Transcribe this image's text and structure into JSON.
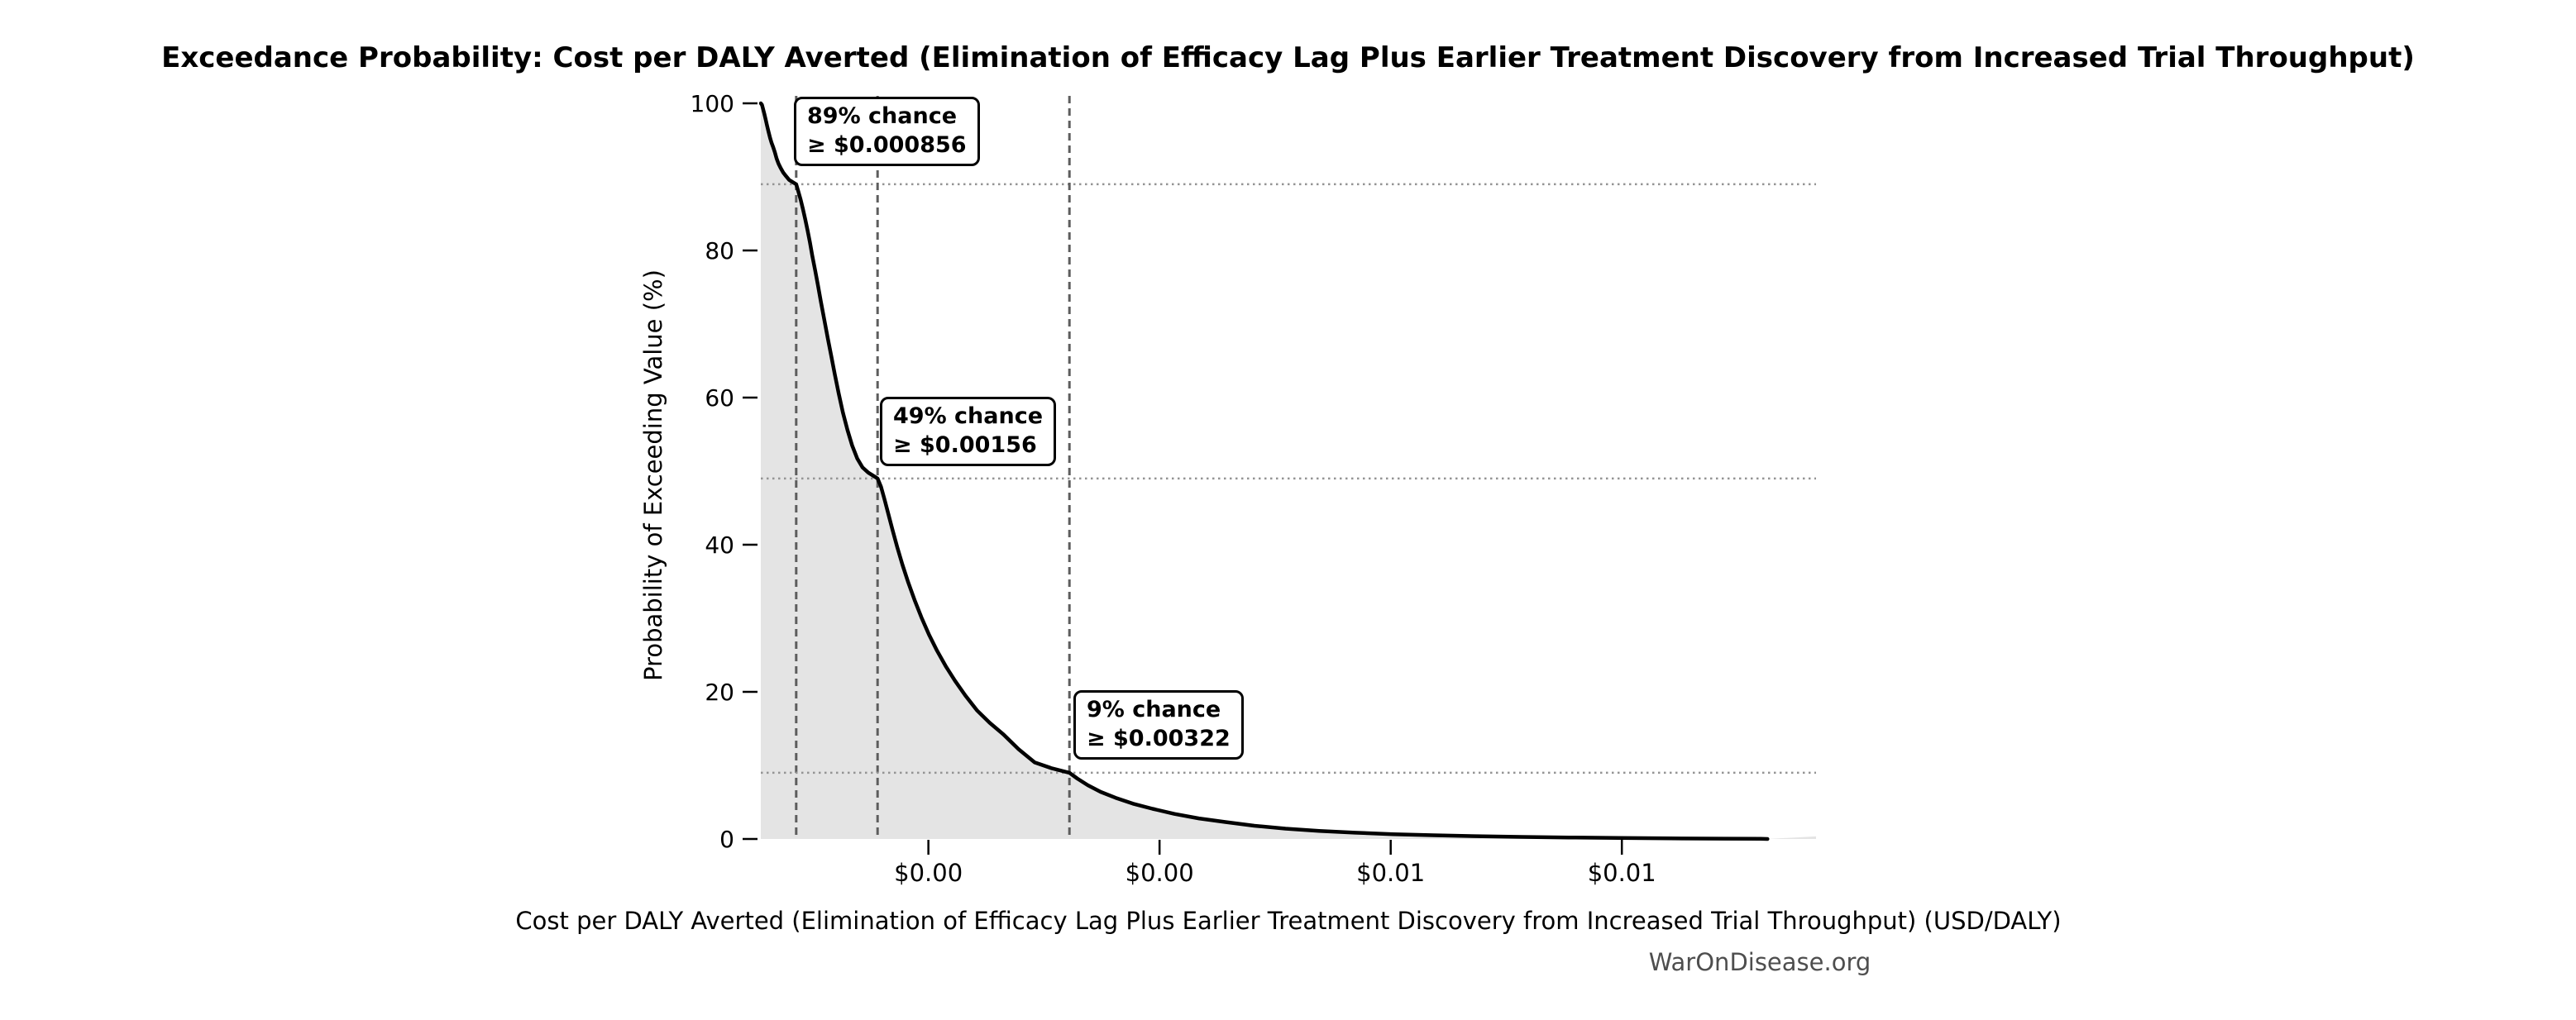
{
  "title": "Exceedance Probability: Cost per DALY Averted (Elimination of Efficacy Lag Plus Earlier Treatment Discovery from Increased Trial Throughput)",
  "watermark": "WarOnDisease.org",
  "chart_data": {
    "type": "area",
    "title": "Exceedance Probability: Cost per DALY Averted (Elimination of Efficacy Lag Plus Earlier Treatment Discovery from Increased Trial Throughput)",
    "xlabel": "Cost per DALY Averted (Elimination of Efficacy Lag Plus Earlier Treatment Discovery from Increased Trial Throughput) (USD/DALY)",
    "ylabel": "Probability of Exceeding Value (%)",
    "xlim": [
      0.00055,
      0.00968
    ],
    "ylim": [
      0,
      101
    ],
    "grid": "off",
    "legend": "none",
    "x_ticks": [
      {
        "value": 0.002,
        "label": "$0.00"
      },
      {
        "value": 0.004,
        "label": "$0.00"
      },
      {
        "value": 0.006,
        "label": "$0.01"
      },
      {
        "value": 0.008,
        "label": "$0.01"
      }
    ],
    "y_ticks": [
      {
        "value": 0,
        "label": "0"
      },
      {
        "value": 20,
        "label": "20"
      },
      {
        "value": 40,
        "label": "40"
      },
      {
        "value": 60,
        "label": "60"
      },
      {
        "value": 80,
        "label": "80"
      },
      {
        "value": 100,
        "label": "100"
      }
    ],
    "annotations": [
      {
        "line1": "89% chance",
        "line2": "≥ $0.000856",
        "value": 0.000856,
        "probability": 89
      },
      {
        "line1": "49% chance",
        "line2": "≥ $0.00156",
        "value": 0.00156,
        "probability": 49
      },
      {
        "line1": "9% chance",
        "line2": "≥ $0.00322",
        "value": 0.00322,
        "probability": 9
      }
    ],
    "colors": {
      "curve": "#000000",
      "fill": "#e4e4e4",
      "vline": "#5d5d5d",
      "hline": "#949494",
      "watermark": "#4e4e4e"
    },
    "series": [
      {
        "name": "exceedance-curve",
        "points": [
          [
            0.00055,
            100.0
          ],
          [
            0.00056,
            99.8
          ],
          [
            0.00057,
            99.2
          ],
          [
            0.00058,
            98.6
          ],
          [
            0.000592,
            97.8
          ],
          [
            0.000604,
            97.0
          ],
          [
            0.000617,
            96.1
          ],
          [
            0.00063,
            95.3
          ],
          [
            0.000644,
            94.6
          ],
          [
            0.000658,
            94.0
          ],
          [
            0.000672,
            93.3
          ],
          [
            0.000687,
            92.5
          ],
          [
            0.000703,
            91.8
          ],
          [
            0.000722,
            91.2
          ],
          [
            0.000744,
            90.6
          ],
          [
            0.000768,
            90.1
          ],
          [
            0.000795,
            89.6
          ],
          [
            0.000824,
            89.3
          ],
          [
            0.000856,
            89.0
          ],
          [
            0.000875,
            88.0
          ],
          [
            0.000895,
            86.9
          ],
          [
            0.000915,
            85.6
          ],
          [
            0.000935,
            84.2
          ],
          [
            0.000955,
            82.7
          ],
          [
            0.000975,
            81.1
          ],
          [
            0.000995,
            79.3
          ],
          [
            0.00102,
            77.3
          ],
          [
            0.001045,
            75.2
          ],
          [
            0.00107,
            73.0
          ],
          [
            0.0011,
            70.5
          ],
          [
            0.00113,
            68.0
          ],
          [
            0.00116,
            65.6
          ],
          [
            0.00119,
            63.2
          ],
          [
            0.001225,
            60.5
          ],
          [
            0.00126,
            58.0
          ],
          [
            0.0013,
            55.6
          ],
          [
            0.00134,
            53.5
          ],
          [
            0.001385,
            51.7
          ],
          [
            0.00143,
            50.5
          ],
          [
            0.00148,
            49.8
          ],
          [
            0.00153,
            49.3
          ],
          [
            0.00156,
            49.0
          ],
          [
            0.00159,
            47.9
          ],
          [
            0.00162,
            46.2
          ],
          [
            0.001655,
            44.1
          ],
          [
            0.00169,
            42.0
          ],
          [
            0.00173,
            39.7
          ],
          [
            0.001775,
            37.3
          ],
          [
            0.001825,
            34.9
          ],
          [
            0.00188,
            32.5
          ],
          [
            0.00194,
            30.1
          ],
          [
            0.002005,
            27.8
          ],
          [
            0.002075,
            25.6
          ],
          [
            0.00215,
            23.5
          ],
          [
            0.00223,
            21.5
          ],
          [
            0.00232,
            19.5
          ],
          [
            0.00242,
            17.5
          ],
          [
            0.00253,
            15.8
          ],
          [
            0.00265,
            14.2
          ],
          [
            0.00278,
            12.2
          ],
          [
            0.00292,
            10.4
          ],
          [
            0.00307,
            9.6
          ],
          [
            0.00322,
            9.0
          ],
          [
            0.00329,
            8.2
          ],
          [
            0.00338,
            7.3
          ],
          [
            0.00349,
            6.4
          ],
          [
            0.00362,
            5.6
          ],
          [
            0.00377,
            4.8
          ],
          [
            0.00394,
            4.1
          ],
          [
            0.00413,
            3.4
          ],
          [
            0.00434,
            2.8
          ],
          [
            0.00457,
            2.3
          ],
          [
            0.00482,
            1.8
          ],
          [
            0.00509,
            1.4
          ],
          [
            0.00538,
            1.1
          ],
          [
            0.00569,
            0.85
          ],
          [
            0.00602,
            0.65
          ],
          [
            0.00637,
            0.5
          ],
          [
            0.00674,
            0.38
          ],
          [
            0.00713,
            0.28
          ],
          [
            0.00754,
            0.2
          ],
          [
            0.00797,
            0.13
          ],
          [
            0.00842,
            0.08
          ],
          [
            0.00889,
            0.04
          ],
          [
            0.0092,
            0.02
          ],
          [
            0.00926,
            0.0
          ]
        ]
      }
    ]
  }
}
